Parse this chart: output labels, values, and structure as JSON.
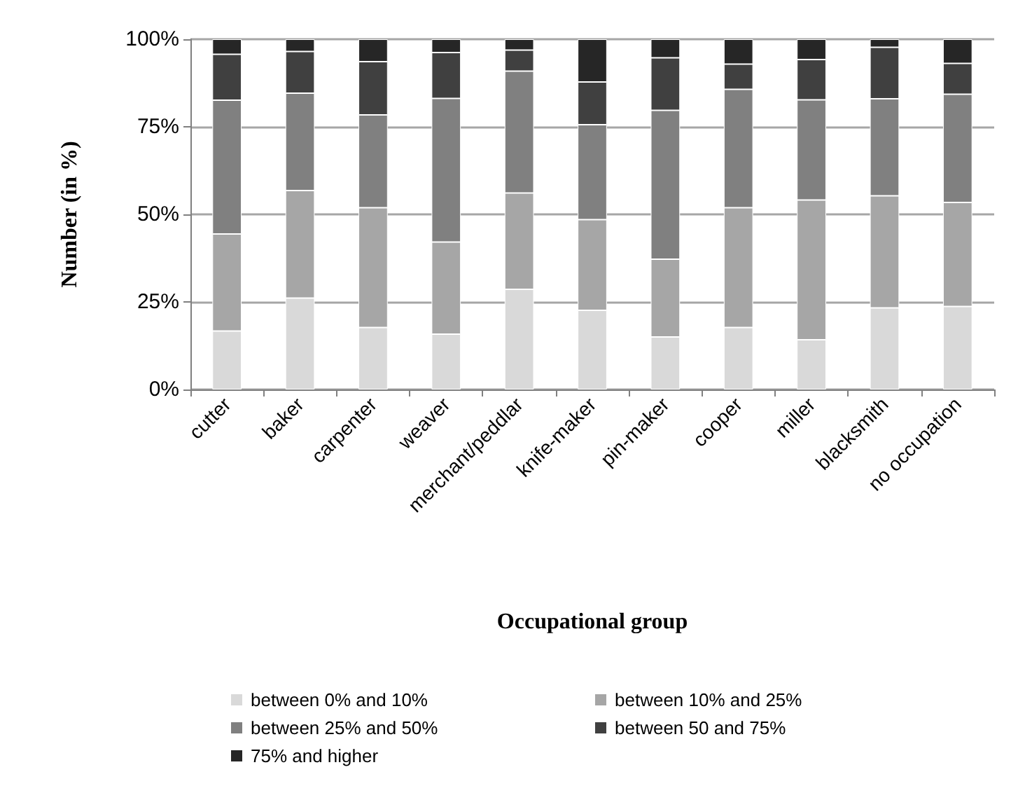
{
  "chart_data": {
    "type": "bar",
    "stacked": true,
    "xlabel": "Occupational group",
    "ylabel": "Number (in %)",
    "categories": [
      "cutter",
      "baker",
      "carpenter",
      "weaver",
      "merchant/peddlar",
      "knife-maker",
      "pin-maker",
      "cooper",
      "miller",
      "blacksmith",
      "no occupation"
    ],
    "series": [
      {
        "name": "between 0% and 10%",
        "color": "#d9d9d9",
        "values": [
          16.7,
          26.1,
          17.7,
          15.8,
          28.6,
          22.6,
          15.0,
          17.7,
          14.2,
          23.3,
          23.7
        ]
      },
      {
        "name": "between 10% and 25%",
        "color": "#a6a6a6",
        "values": [
          27.7,
          30.7,
          34.2,
          26.3,
          27.5,
          25.9,
          22.2,
          34.2,
          39.9,
          32.0,
          29.7
        ]
      },
      {
        "name": "between 25% and 50%",
        "color": "#808080",
        "values": [
          38.2,
          27.8,
          26.5,
          41.0,
          34.8,
          27.1,
          42.5,
          33.8,
          28.6,
          27.7,
          30.9
        ]
      },
      {
        "name": "between 50 and 75%",
        "color": "#404040",
        "values": [
          13.1,
          11.9,
          15.2,
          13.1,
          6.0,
          12.2,
          15.0,
          7.2,
          11.5,
          14.7,
          8.8
        ]
      },
      {
        "name": "75% and higher",
        "color": "#262626",
        "values": [
          4.3,
          3.5,
          6.4,
          3.8,
          3.1,
          12.2,
          5.3,
          7.1,
          5.8,
          2.3,
          6.9
        ]
      }
    ],
    "ylim": [
      0,
      100
    ],
    "yticks": [
      {
        "value": 0,
        "label": "0%"
      },
      {
        "value": 25,
        "label": "25%"
      },
      {
        "value": 50,
        "label": "50%"
      },
      {
        "value": 75,
        "label": "75%"
      },
      {
        "value": 100,
        "label": "100%"
      }
    ],
    "grid": "y",
    "legend": "bottom"
  }
}
